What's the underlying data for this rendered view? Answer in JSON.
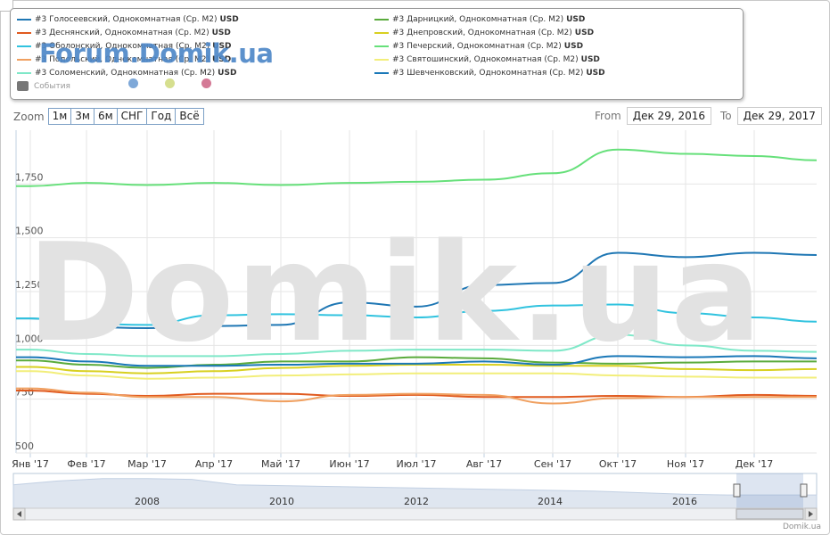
{
  "legend": {
    "items": [
      {
        "label": "#3 Голосеевский, Однокомнатная (Ср. М2)",
        "unit": "USD",
        "color": "#1f77b4"
      },
      {
        "label": "#3 Деснянский, Однокомнатная (Ср. М2)",
        "unit": "USD",
        "color": "#e05a1f"
      },
      {
        "label": "#3 Оболонский, Однокомнатная (Ср. М2)",
        "unit": "USD",
        "color": "#31c3df"
      },
      {
        "label": "#3 Подольский, Однокомнатная (Ср. М2)",
        "unit": "USD",
        "color": "#f0a060"
      },
      {
        "label": "#3 Соломенский, Однокомнатная (Ср. М2)",
        "unit": "USD",
        "color": "#7fe8c8"
      },
      {
        "label": "#3 Дарницкий, Однокомнатная (Ср. М2)",
        "unit": "USD",
        "color": "#5aab3c"
      },
      {
        "label": "#3 Днепровский, Однокомнатная (Ср. М2)",
        "unit": "USD",
        "color": "#d8d020"
      },
      {
        "label": "#3 Печерский, Однокомнатная (Ср. М2)",
        "unit": "USD",
        "color": "#66e07a"
      },
      {
        "label": "#3 Святошинский, Однокомнатная (Ср. М2)",
        "unit": "USD",
        "color": "#f2ee7a"
      },
      {
        "label": "#3 Шевченковский, Однокомнатная (Ср. М2)",
        "unit": "USD",
        "color": "#1a78b8"
      }
    ],
    "events_label": "События",
    "event_dots": [
      "#7ea8d8",
      "#d6df8f",
      "#d47a96"
    ]
  },
  "watermarks": {
    "small": "Forum.Domik.ua",
    "big": "Domik.ua"
  },
  "zoom": {
    "label": "Zoom",
    "buttons": [
      "1м",
      "3м",
      "6м",
      "СНГ",
      "Год",
      "Всё"
    ]
  },
  "range": {
    "from_label": "From",
    "from_value": "Дек 29, 2016",
    "to_label": "To",
    "to_value": "Дек 29, 2017"
  },
  "credit": "Domik.ua",
  "chart_data": {
    "type": "line",
    "ylim": [
      500,
      2000
    ],
    "y_ticks": [
      500,
      750,
      1000,
      1250,
      1500,
      1750
    ],
    "y_tick_labels": [
      "500",
      "750",
      "1,000",
      "1,250",
      "1,500",
      "1,750"
    ],
    "x_labels": [
      "Янв '17",
      "Фев '17",
      "Мар '17",
      "Апр '17",
      "Май '17",
      "Июн '17",
      "Июл '17",
      "Авг '17",
      "Сен '17",
      "Окт '17",
      "Ноя '17",
      "Дек '17"
    ],
    "x": [
      "Янв '17",
      "Фев '17",
      "Мар '17",
      "Апр '17",
      "Май '17",
      "Июн '17",
      "Июл '17",
      "Авг '17",
      "Сен '17",
      "Окт '17",
      "Ноя '17",
      "Дек '17",
      "Дек 29, 2017"
    ],
    "grid": true,
    "series": [
      {
        "name": "#3 Голосеевский, Однокомнатная (Ср. М2)",
        "color": "#1f77b4",
        "values": [
          1125,
          1085,
          1080,
          1090,
          1095,
          1200,
          1180,
          1280,
          1290,
          1430,
          1410,
          1430,
          1420
        ]
      },
      {
        "name": "#3 Деснянский, Однокомнатная (Ср. М2)",
        "color": "#e05a1f",
        "values": [
          790,
          775,
          765,
          775,
          775,
          765,
          770,
          760,
          760,
          765,
          760,
          770,
          765
        ]
      },
      {
        "name": "#3 Оболонский, Однокомнатная (Ср. М2)",
        "color": "#31c3df",
        "values": [
          1125,
          1100,
          1095,
          1140,
          1145,
          1140,
          1130,
          1160,
          1185,
          1190,
          1150,
          1130,
          1110
        ]
      },
      {
        "name": "#3 Подольский, Однокомнатная (Ср. М2)",
        "color": "#f0a060",
        "values": [
          800,
          780,
          760,
          760,
          740,
          770,
          775,
          770,
          730,
          755,
          760,
          760,
          760
        ]
      },
      {
        "name": "#3 Соломенский, Однокомнатная (Ср. М2)",
        "color": "#7fe8c8",
        "values": [
          980,
          960,
          950,
          950,
          960,
          975,
          980,
          980,
          975,
          1050,
          1000,
          975,
          970
        ]
      },
      {
        "name": "#3 Дарницкий, Однокомнатная (Ср. М2)",
        "color": "#5aab3c",
        "values": [
          930,
          910,
          895,
          910,
          925,
          925,
          945,
          940,
          920,
          915,
          920,
          925,
          925
        ]
      },
      {
        "name": "#3 Днепровский, Однокомнатная (Ср. М2)",
        "color": "#d8d020",
        "values": [
          900,
          880,
          870,
          880,
          895,
          905,
          910,
          910,
          905,
          905,
          890,
          885,
          890
        ]
      },
      {
        "name": "#3 Печерский, Однокомнатная (Ср. М2)",
        "color": "#66e07a",
        "values": [
          1740,
          1755,
          1745,
          1755,
          1745,
          1755,
          1760,
          1770,
          1800,
          1910,
          1890,
          1880,
          1860
        ]
      },
      {
        "name": "#3 Святошинский, Однокомнатная (Ср. М2)",
        "color": "#f2ee7a",
        "values": [
          880,
          860,
          845,
          850,
          860,
          865,
          870,
          870,
          870,
          860,
          855,
          850,
          850
        ]
      },
      {
        "name": "#3 Шевченковский, Однокомнатная (Ср. М2)",
        "color": "#1a78b8",
        "values": [
          945,
          925,
          905,
          905,
          910,
          915,
          915,
          925,
          910,
          950,
          945,
          950,
          940
        ]
      }
    ],
    "navigator": {
      "labels": [
        "2008",
        "2010",
        "2012",
        "2014",
        "2016"
      ],
      "values": [
        1500,
        1750,
        1900,
        1900,
        1850,
        1500,
        1450,
        1400,
        1350,
        1300,
        1250,
        1200,
        1150,
        1100,
        1000,
        900,
        850,
        850,
        850
      ]
    }
  }
}
